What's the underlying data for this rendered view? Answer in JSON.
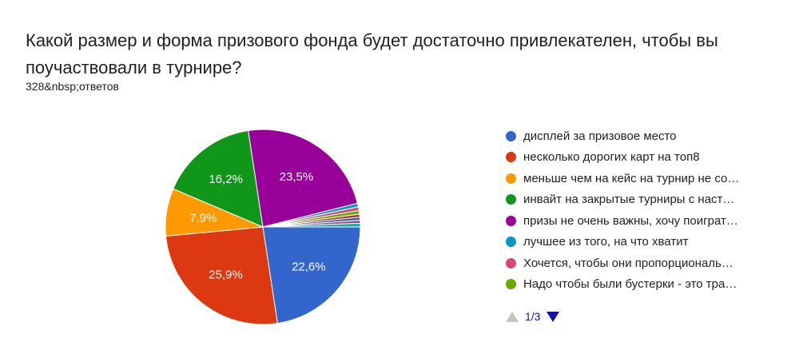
{
  "question": {
    "title": "Какой размер и форма призового фонда будет достаточно привлекателен, чтобы вы поучаствовали в турнире?",
    "response_count": "328&nbsp;ответов"
  },
  "chart_data": {
    "type": "pie",
    "slices": [
      {
        "label": "дисплей за призовое место",
        "value": 22.6,
        "display": "22,6%",
        "color": "#3366cc"
      },
      {
        "label": "несколько дорогих карт на топ8",
        "value": 25.9,
        "display": "25,9%",
        "color": "#dc3912"
      },
      {
        "label": "меньше чем на кейс на турнир не со…",
        "value": 7.9,
        "display": "7,9%",
        "color": "#ff9900"
      },
      {
        "label": "инвайт на закрытые турниры с наст…",
        "value": 16.2,
        "display": "16,2%",
        "color": "#109618"
      },
      {
        "label": "призы не очень важны, хочу поиграт…",
        "value": 23.5,
        "display": "23,5%",
        "color": "#990099"
      },
      {
        "label": "лучшее из того, на что хватит",
        "value": 0.6,
        "display": "",
        "color": "#0099c6"
      },
      {
        "label": "Хочется, чтобы они пропорциональ…",
        "value": 0.6,
        "display": "",
        "color": "#dd4477"
      },
      {
        "label": "Надо чтобы были бустерки - это тра…",
        "value": 0.6,
        "display": "",
        "color": "#66aa00"
      },
      {
        "label": "",
        "value": 0.5,
        "display": "",
        "color": "#b82e2e"
      },
      {
        "label": "",
        "value": 0.5,
        "display": "",
        "color": "#316395"
      },
      {
        "label": "",
        "value": 0.5,
        "display": "",
        "color": "#994499"
      },
      {
        "label": "",
        "value": 0.6,
        "display": "",
        "color": "#22aa99"
      }
    ],
    "legend_visible_count": 8,
    "legend_position": "right"
  },
  "pager": {
    "text": "1/3"
  },
  "icons": {
    "prev": "triangle-up-icon",
    "next": "triangle-down-icon"
  }
}
